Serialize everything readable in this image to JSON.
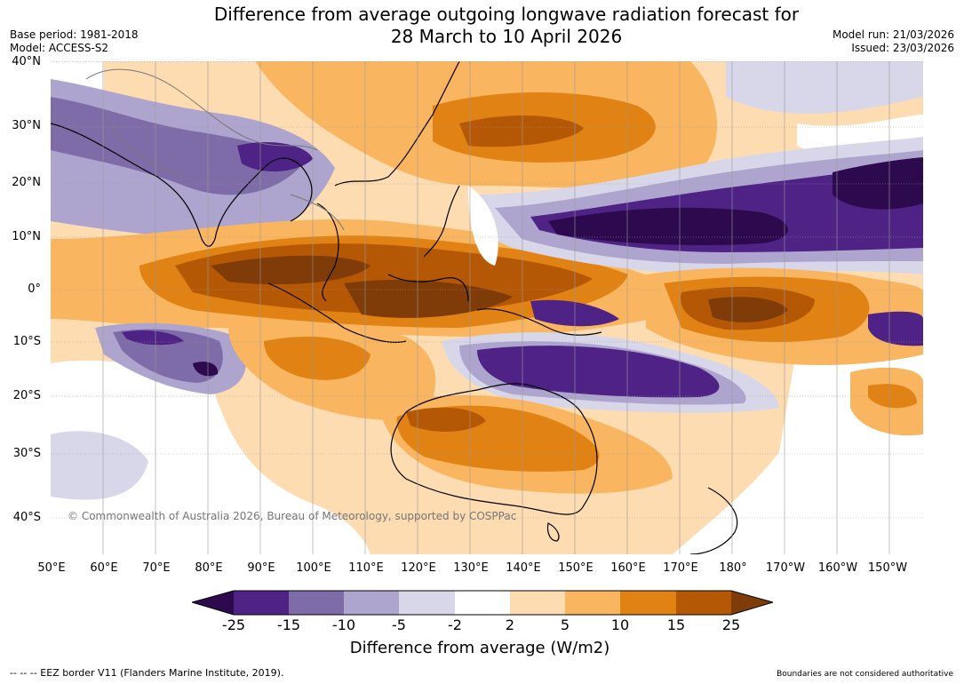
{
  "title": {
    "line1": "Difference from average outgoing longwave radiation forecast for",
    "line2": "28 March to 10 April 2026"
  },
  "meta": {
    "base_period": "Base period: 1981-2018",
    "model": "Model: ACCESS-S2",
    "model_run": "Model run: 21/03/2026",
    "issued": "Issued: 23/03/2026"
  },
  "map": {
    "lat_labels": [
      "40°N",
      "30°N",
      "20°N",
      "10°N",
      "0°",
      "10°S",
      "20°S",
      "30°S",
      "40°S"
    ],
    "lon_labels": [
      "50°E",
      "60°E",
      "70°E",
      "80°E",
      "90°E",
      "100°E",
      "110°E",
      "120°E",
      "130°E",
      "140°E",
      "150°E",
      "160°E",
      "170°E",
      "180°",
      "170°W",
      "160°W",
      "150°W"
    ],
    "copyright": "© Commonwealth of Australia 2026, Bureau of Meteorology, supported by COSPPac"
  },
  "colorbar": {
    "ticks": [
      "-25",
      "-15",
      "-10",
      "-5",
      "-2",
      "2",
      "5",
      "10",
      "15",
      "25"
    ],
    "colors": [
      "#2d0a4e",
      "#4f2385",
      "#7e6ca8",
      "#aea5cf",
      "#d8d7e9",
      "#ffffff",
      "#fddcb1",
      "#f9b55f",
      "#e08214",
      "#b45805",
      "#7f3b08"
    ],
    "title": "Difference from average (W/m2)"
  },
  "footer": {
    "eez": "--  --  -- EEZ border V11 (Flanders Marine Institute, 2019).",
    "boundaries": "Boundaries are not considered authoritative"
  }
}
